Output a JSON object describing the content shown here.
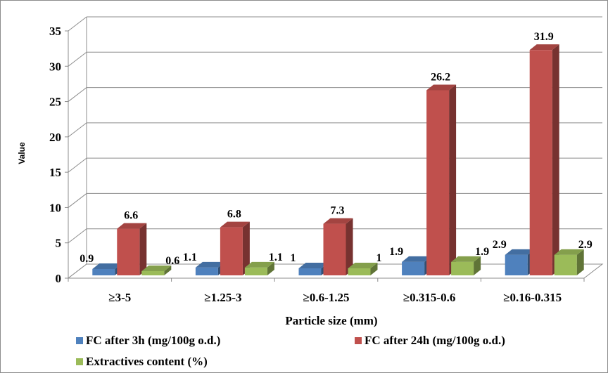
{
  "chart_data": {
    "type": "bar",
    "style": "3d-clustered-column",
    "categories": [
      "≥3-5",
      "≥1.25-3",
      "≥0.6-1.25",
      "≥0.315-0.6",
      "≥0.16-0.315"
    ],
    "series": [
      {
        "name": "FC after 3h (mg/100g o.d.)",
        "values": [
          0.9,
          1.1,
          1,
          1.9,
          2.9
        ],
        "labels": [
          "0.9",
          "1.1",
          "1",
          "1.9",
          "2.9"
        ],
        "color": "#4f81bd"
      },
      {
        "name": "FC after 24h (mg/100g o.d.)",
        "values": [
          6.6,
          6.8,
          7.3,
          26.2,
          31.9
        ],
        "labels": [
          "6.6",
          "6.8",
          "7.3",
          "26.2",
          "31.9"
        ],
        "color": "#c0504d"
      },
      {
        "name": "Extractives content (%)",
        "values": [
          0.6,
          1.1,
          1,
          1.9,
          2.9
        ],
        "labels": [
          "0.6",
          "1.1",
          "1",
          "1.9",
          "2.9"
        ],
        "color": "#9bbb59"
      }
    ],
    "yticks": [
      "0",
      "5",
      "10",
      "15",
      "20",
      "25",
      "30",
      "35"
    ],
    "ylim": [
      0,
      35
    ],
    "xlabel": "Particle size (mm)",
    "ylabel": "Value",
    "grid": true,
    "legend": "bottom"
  }
}
